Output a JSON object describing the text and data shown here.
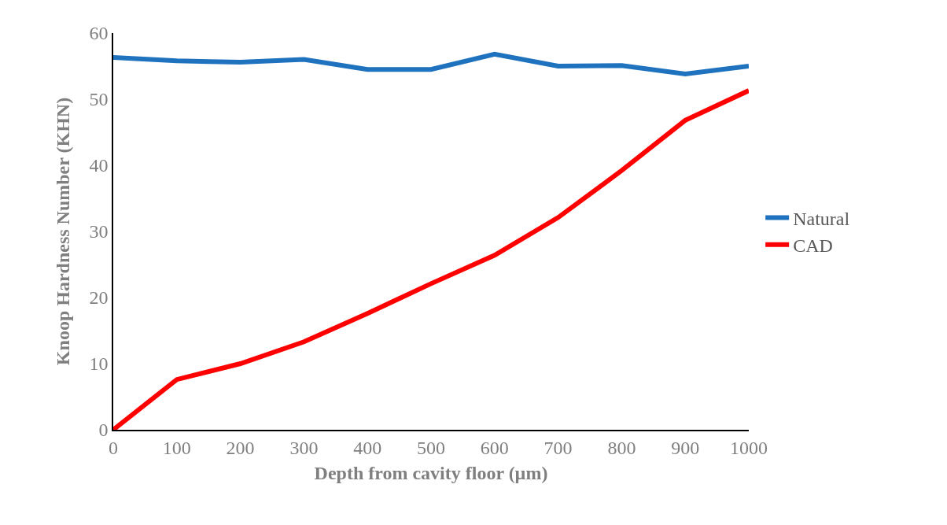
{
  "chart_data": {
    "type": "line",
    "xlabel": "Depth from cavity floor (µm)",
    "ylabel": "Knoop Hardness Number (KHN)",
    "x": [
      0,
      100,
      200,
      300,
      400,
      500,
      600,
      700,
      800,
      900,
      1000
    ],
    "series": [
      {
        "name": "Natural",
        "color": "#1f72be",
        "values": [
          56.3,
          55.8,
          55.6,
          56.0,
          54.5,
          54.5,
          56.8,
          55.0,
          55.1,
          53.8,
          55.0
        ]
      },
      {
        "name": "CAD",
        "color": "#ff0000",
        "values": [
          0,
          7.6,
          10.0,
          13.3,
          17.6,
          22.1,
          26.4,
          32.1,
          39.2,
          46.8,
          51.3
        ]
      }
    ],
    "xlim": [
      0,
      1000
    ],
    "xticks": [
      0,
      100,
      200,
      300,
      400,
      500,
      600,
      700,
      800,
      900,
      1000
    ],
    "ylim": [
      0,
      60
    ],
    "yticks": [
      0,
      10,
      20,
      30,
      40,
      50,
      60
    ],
    "grid": false,
    "legend": "right",
    "marker": "none",
    "line_style": "solid"
  }
}
